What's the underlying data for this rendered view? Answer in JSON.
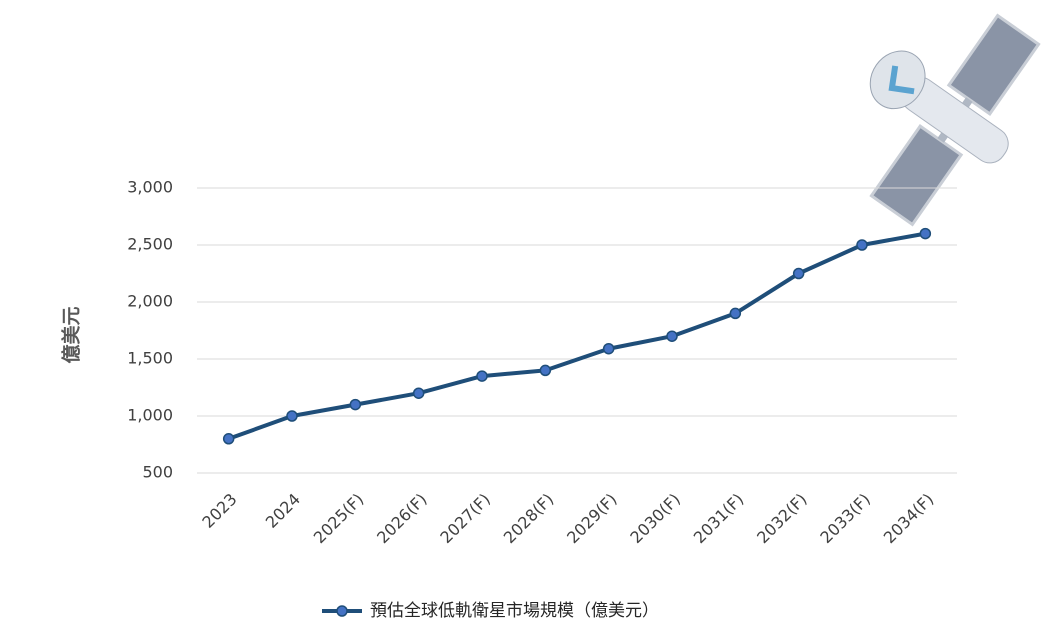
{
  "chart_data": {
    "type": "line",
    "y_label": "億美元",
    "categories": [
      "2023",
      "2024",
      "2025(F)",
      "2026(F)",
      "2027(F)",
      "2028(F)",
      "2029(F)",
      "2030(F)",
      "2031(F)",
      "2032(F)",
      "2033(F)",
      "2034(F)"
    ],
    "series": [
      {
        "name": "預估全球低軌衛星市場規模（億美元）",
        "color": "#1f4e79",
        "marker_color": "#4472c4",
        "values": [
          800,
          1000,
          1100,
          1200,
          1350,
          1400,
          1590,
          1700,
          1900,
          2250,
          2500,
          2600
        ]
      }
    ],
    "ylim": [
      500,
      3000
    ],
    "yticks": [
      500,
      {
        "value": 1000,
        "label": "1,000"
      },
      {
        "value": 1500,
        "label": "1,500"
      },
      {
        "value": 2000,
        "label": "2,000"
      },
      {
        "value": 2500,
        "label": "2,500"
      },
      {
        "value": 3000,
        "label": "3,000"
      }
    ],
    "grid": true,
    "legend": "bottom"
  }
}
